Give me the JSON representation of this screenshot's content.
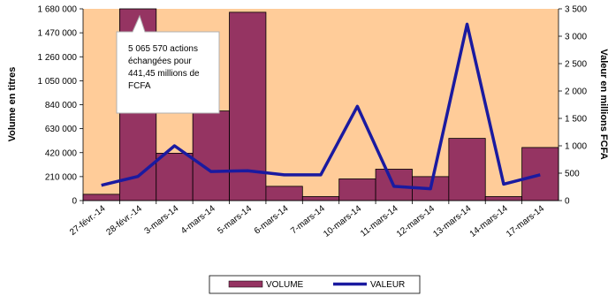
{
  "chart_data": {
    "type": "bar",
    "categories": [
      "27-févr.-14",
      "28-févr.-14",
      "3-mars-14",
      "4-mars-14",
      "5-mars-14",
      "6-mars-14",
      "7-mars-14",
      "10-mars-14",
      "11-mars-14",
      "12-mars-14",
      "13-mars-14",
      "14-mars-14",
      "17-mars-14"
    ],
    "series": [
      {
        "name": "VOLUME",
        "type": "bar",
        "axis": "left",
        "color": "#953462",
        "values": [
          55000,
          1700000,
          415000,
          785000,
          1650000,
          125000,
          35000,
          190000,
          275000,
          210000,
          545000,
          35000,
          465000
        ]
      },
      {
        "name": "VALEUR",
        "type": "line",
        "axis": "right",
        "color": "#1a1aa0",
        "values": [
          280,
          440,
          1000,
          530,
          545,
          470,
          470,
          1720,
          260,
          215,
          3220,
          300,
          470
        ]
      }
    ],
    "ylabel_left": "Volume en titres",
    "ylabel_right": "Valeur en millions FCFA",
    "ylim_left": [
      0,
      1680000
    ],
    "ylim_right": [
      0,
      3500
    ],
    "yticks_left": [
      "0",
      "210 000",
      "420 000",
      "630 000",
      "840 000",
      "1 050 000",
      "1 260 000",
      "1 470 000",
      "1 680 000"
    ],
    "yticks_right": [
      "0",
      "500",
      "1 000",
      "1 500",
      "2 000",
      "2 500",
      "3 000",
      "3 500"
    ],
    "plot_background": "#FFCC99",
    "annotation": {
      "lines": [
        "5 065 570 actions",
        "échangées pour",
        "441,45 millions de",
        "FCFA"
      ],
      "target_category": "28-févr.-14"
    },
    "legend": {
      "position": "bottom",
      "items": [
        "VOLUME",
        "VALEUR"
      ]
    }
  }
}
